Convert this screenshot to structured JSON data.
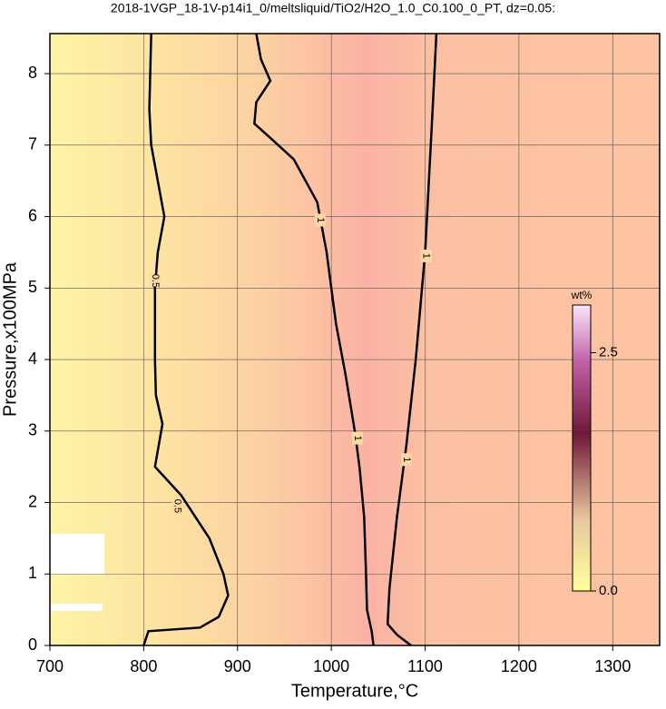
{
  "chart_data": {
    "type": "contour",
    "title": "2018-1VGP_18-1V-p14i1_0/meltsliquid/TiO2/H2O_1.0_C0.100_0_PT, dz=0.05:",
    "x_label": "Temperature,°C",
    "y_label": "Pressure,x100MPa",
    "xlim": [
      700,
      1350
    ],
    "ylim": [
      0,
      8.56
    ],
    "xticks": [
      700,
      800,
      900,
      1000,
      1100,
      1200,
      1300
    ],
    "yticks": [
      0,
      1,
      2,
      3,
      4,
      5,
      6,
      7,
      8
    ],
    "grid": true,
    "contours": [
      {
        "level": 0.5,
        "color": "#000000",
        "x": [
          808,
          806,
          808,
          815,
          822,
          815,
          812,
          812,
          813,
          820,
          812,
          840,
          870,
          885,
          890,
          880,
          860,
          805,
          800
        ],
        "y": [
          8.56,
          7.5,
          7.0,
          6.5,
          6.0,
          5.5,
          5.0,
          4.0,
          3.5,
          3.1,
          2.5,
          2.1,
          1.5,
          1.0,
          0.7,
          0.4,
          0.25,
          0.2,
          0
        ],
        "labels": [
          {
            "text": "0.5",
            "x": 812,
            "y": 5.1
          },
          {
            "text": "0.5",
            "x": 836,
            "y": 1.95
          }
        ]
      },
      {
        "level": 1,
        "color": "#000000",
        "x": [
          920,
          925,
          935,
          920,
          918,
          935,
          960,
          985,
          995,
          1005,
          1015,
          1025,
          1030,
          1035,
          1037,
          1038,
          1043,
          1045
        ],
        "y": [
          8.56,
          8.2,
          7.9,
          7.6,
          7.3,
          7.1,
          6.8,
          6.2,
          5.5,
          4.5,
          3.8,
          3.0,
          2.5,
          1.8,
          1.0,
          0.5,
          0.2,
          0
        ],
        "labels": [
          {
            "text": "1",
            "x": 988,
            "y": 5.95
          },
          {
            "text": "1",
            "x": 1028,
            "y": 2.9
          }
        ]
      },
      {
        "level": 1,
        "color": "#000000",
        "x": [
          1112,
          1108,
          1100,
          1090,
          1080,
          1070,
          1062,
          1060,
          1070,
          1085
        ],
        "y": [
          8.56,
          7.5,
          5.5,
          4.0,
          2.8,
          1.8,
          0.8,
          0.3,
          0.15,
          0
        ],
        "labels": [
          {
            "text": "1",
            "x": 1101,
            "y": 5.45
          },
          {
            "text": "1",
            "x": 1080,
            "y": 2.6
          }
        ]
      }
    ],
    "colorbar": {
      "label": "wt%",
      "lim": [
        0,
        3.0
      ],
      "ticks": [
        {
          "value": 0,
          "label": "0.0"
        },
        {
          "value": 2.5,
          "label": "2.5"
        }
      ]
    }
  }
}
